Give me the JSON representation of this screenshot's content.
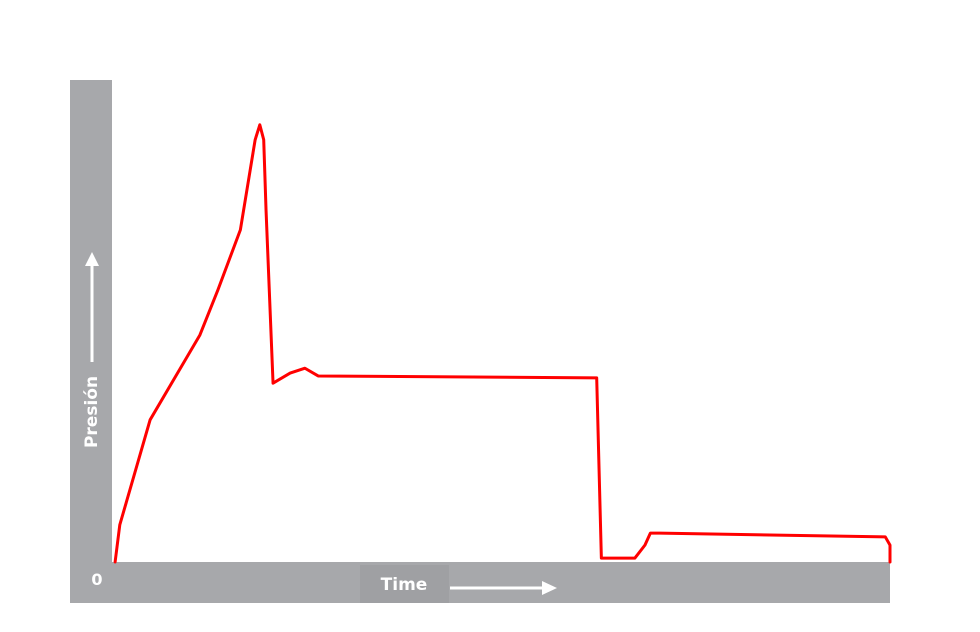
{
  "chart_data": {
    "type": "line",
    "title": "",
    "xlabel": "Time",
    "ylabel": "Presión",
    "origin_label": "0",
    "axis_color": "#a7a8ab",
    "line_color": "#ff0000",
    "grid": false,
    "xlim": [
      0,
      100
    ],
    "ylim": [
      0,
      100
    ],
    "series": [
      {
        "points": [
          [
            0.4,
            0
          ],
          [
            1.0,
            7.7
          ],
          [
            4.9,
            29.5
          ],
          [
            11.3,
            47.1
          ],
          [
            13.6,
            56.4
          ],
          [
            16.5,
            68.9
          ],
          [
            18.4,
            87.6
          ],
          [
            19.0,
            90.7
          ],
          [
            19.5,
            87.6
          ],
          [
            19.8,
            73.0
          ],
          [
            20.7,
            37.1
          ],
          [
            22.9,
            39.2
          ],
          [
            24.8,
            40.2
          ],
          [
            26.5,
            38.6
          ],
          [
            62.3,
            38.2
          ],
          [
            62.9,
            0.8
          ],
          [
            67.2,
            0.8
          ],
          [
            68.5,
            3.5
          ],
          [
            69.2,
            6.0
          ],
          [
            70.4,
            6.0
          ],
          [
            99.4,
            5.2
          ],
          [
            100,
            3.5
          ],
          [
            100,
            0
          ]
        ]
      }
    ]
  }
}
